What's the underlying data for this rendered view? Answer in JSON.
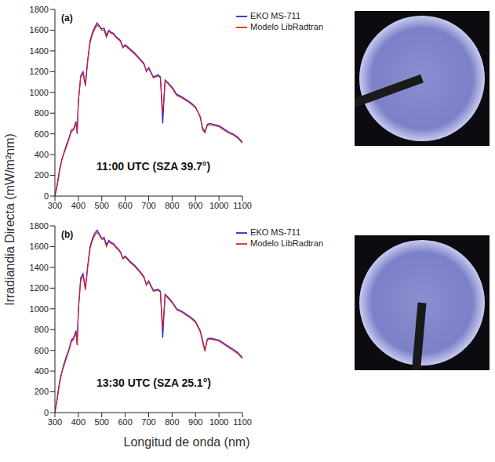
{
  "ylabel": "Irradiandia Directa (mW/m²nm)",
  "xlabel": "Longitud de onda (nm)",
  "chart_data": [
    {
      "type": "line",
      "label": "(a)",
      "annotation": "11:00 UTC (SZA 39.7°)",
      "legend": "upper right",
      "xlim": [
        300,
        1100
      ],
      "xticks": [
        300,
        400,
        500,
        600,
        700,
        800,
        900,
        1000,
        1100
      ],
      "ylim": [
        0,
        1800
      ],
      "yticks": [
        0,
        200,
        400,
        600,
        800,
        1000,
        1200,
        1400,
        1600,
        1800
      ],
      "x": [
        300,
        310,
        320,
        330,
        340,
        350,
        360,
        370,
        380,
        390,
        395,
        400,
        410,
        420,
        430,
        440,
        450,
        460,
        470,
        480,
        490,
        500,
        510,
        520,
        530,
        540,
        550,
        560,
        570,
        580,
        590,
        600,
        620,
        640,
        660,
        680,
        690,
        700,
        720,
        740,
        750,
        760,
        770,
        780,
        800,
        820,
        840,
        860,
        880,
        900,
        920,
        930,
        940,
        950,
        960,
        980,
        1000,
        1020,
        1040,
        1060,
        1080,
        1100
      ],
      "series": [
        {
          "name": "EKO MS-711",
          "color": "#1f1fe0",
          "values": [
            0,
            120,
            260,
            360,
            430,
            500,
            560,
            640,
            650,
            720,
            600,
            920,
            1160,
            1200,
            1080,
            1320,
            1500,
            1580,
            1630,
            1670,
            1640,
            1610,
            1620,
            1550,
            1600,
            1580,
            1570,
            1540,
            1520,
            1500,
            1440,
            1460,
            1420,
            1380,
            1330,
            1280,
            1200,
            1240,
            1150,
            1170,
            1150,
            700,
            1120,
            1100,
            1050,
            980,
            960,
            930,
            900,
            860,
            760,
            660,
            620,
            690,
            700,
            690,
            680,
            650,
            620,
            600,
            570,
            520
          ]
        },
        {
          "name": "Modelo LibRadtran",
          "color": "#e01f1f",
          "values": [
            0,
            100,
            240,
            350,
            420,
            480,
            550,
            620,
            640,
            700,
            620,
            900,
            1150,
            1180,
            1060,
            1300,
            1480,
            1560,
            1610,
            1650,
            1630,
            1600,
            1600,
            1530,
            1590,
            1570,
            1560,
            1530,
            1510,
            1490,
            1430,
            1450,
            1410,
            1370,
            1320,
            1270,
            1210,
            1230,
            1140,
            1160,
            1140,
            790,
            1110,
            1090,
            1040,
            970,
            950,
            920,
            890,
            850,
            770,
            640,
            610,
            680,
            690,
            680,
            670,
            640,
            610,
            590,
            560,
            510
          ]
        }
      ]
    },
    {
      "type": "line",
      "label": "(b)",
      "annotation": "13:30 UTC (SZA 25.1°)",
      "legend": "upper right",
      "xlim": [
        300,
        1100
      ],
      "xticks": [
        300,
        400,
        500,
        600,
        700,
        800,
        900,
        1000,
        1100
      ],
      "ylim": [
        0,
        1800
      ],
      "yticks": [
        0,
        200,
        400,
        600,
        800,
        1000,
        1200,
        1400,
        1600,
        1800
      ],
      "x": [
        300,
        310,
        320,
        330,
        340,
        350,
        360,
        370,
        380,
        390,
        395,
        400,
        410,
        420,
        430,
        440,
        450,
        460,
        470,
        480,
        490,
        500,
        510,
        520,
        530,
        540,
        550,
        560,
        570,
        580,
        590,
        600,
        620,
        640,
        660,
        680,
        690,
        700,
        720,
        740,
        750,
        760,
        770,
        780,
        800,
        820,
        840,
        860,
        880,
        900,
        920,
        930,
        940,
        950,
        960,
        980,
        1000,
        1020,
        1040,
        1060,
        1080,
        1100
      ],
      "series": [
        {
          "name": "EKO MS-711",
          "color": "#1f1fe0",
          "values": [
            0,
            150,
            300,
            400,
            480,
            550,
            610,
            700,
            720,
            790,
            650,
            1000,
            1300,
            1340,
            1200,
            1420,
            1600,
            1680,
            1730,
            1760,
            1720,
            1680,
            1690,
            1620,
            1660,
            1640,
            1630,
            1600,
            1580,
            1550,
            1490,
            1510,
            1460,
            1420,
            1370,
            1310,
            1230,
            1270,
            1180,
            1190,
            1170,
            720,
            1140,
            1120,
            1070,
            1000,
            980,
            950,
            920,
            880,
            790,
            700,
            600,
            710,
            720,
            710,
            700,
            670,
            640,
            610,
            580,
            530
          ]
        },
        {
          "name": "Modelo LibRadtran",
          "color": "#e01f1f",
          "values": [
            0,
            130,
            280,
            390,
            460,
            530,
            600,
            680,
            710,
            770,
            660,
            980,
            1270,
            1320,
            1180,
            1400,
            1580,
            1660,
            1710,
            1740,
            1710,
            1670,
            1670,
            1600,
            1650,
            1630,
            1620,
            1590,
            1570,
            1540,
            1480,
            1500,
            1450,
            1410,
            1360,
            1300,
            1240,
            1260,
            1170,
            1180,
            1160,
            810,
            1130,
            1110,
            1060,
            990,
            970,
            940,
            910,
            870,
            780,
            680,
            590,
            700,
            710,
            700,
            690,
            660,
            630,
            600,
            570,
            520
          ]
        }
      ]
    }
  ]
}
